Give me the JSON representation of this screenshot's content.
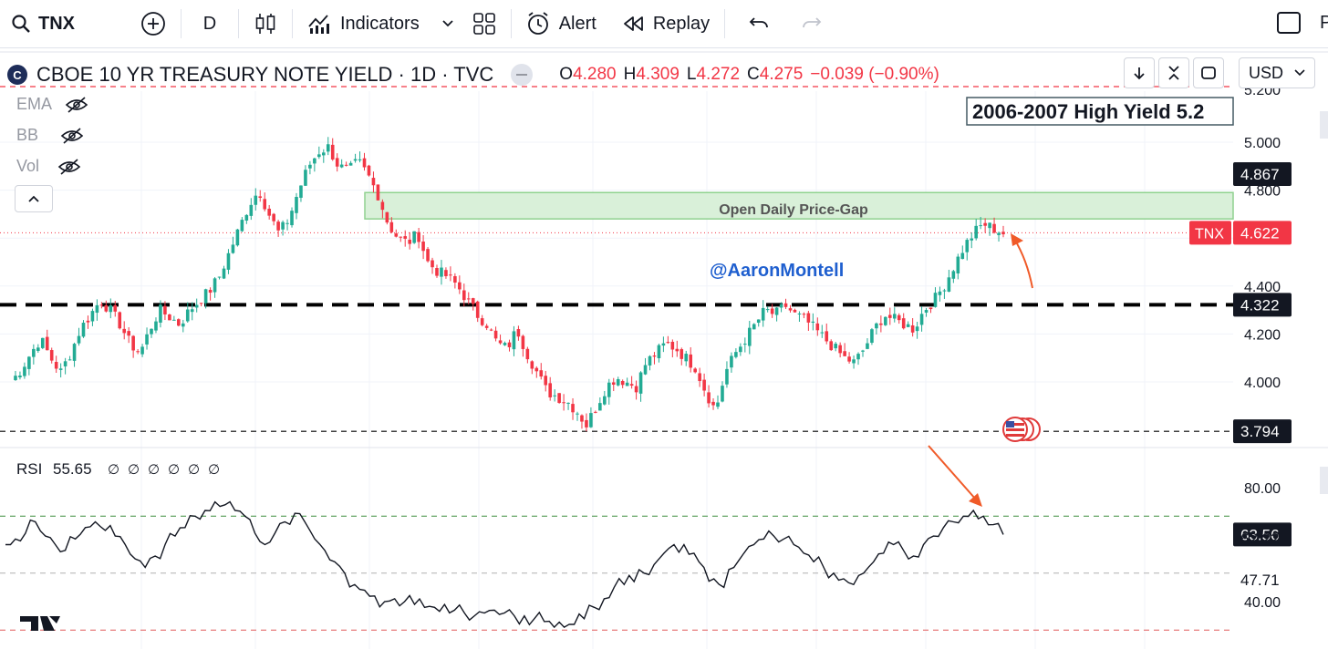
{
  "toolbar": {
    "symbol": "TNX",
    "interval": "D",
    "indicators_label": "Indicators",
    "alert_label": "Alert",
    "replay_label": "Replay",
    "right_cut_text": "P"
  },
  "title": {
    "logo_letter": "C",
    "name": "CBOE 10 YR TREASURY NOTE YIELD · 1D · TVC",
    "ohlc": {
      "o_label": "O",
      "o": "4.280",
      "h_label": "H",
      "h": "4.309",
      "l_label": "L",
      "l": "4.272",
      "c_label": "C",
      "c": "4.275",
      "change": "−0.039 (−0.90%)"
    }
  },
  "legend": {
    "ema": "EMA",
    "bb": "BB",
    "vol": "Vol"
  },
  "currency": "USD",
  "colors": {
    "up": "#22ab94",
    "down": "#f23645",
    "gap_fill": "#d9f0d9",
    "gap_border": "#8fd18f",
    "text": "#131722",
    "handle_blue": "#1f5fcf"
  },
  "chart_data": {
    "type": "candlestick",
    "price_ylim": [
      3.78,
      5.05
    ],
    "price_ticks": [
      "5.000",
      "4.800",
      "4.400",
      "4.200",
      "4.000"
    ],
    "price_tick_partial_top": "5.200",
    "price_badges": [
      {
        "label": "4.867",
        "value": 4.867,
        "style": "dark"
      },
      {
        "label": "4.622",
        "value": 4.622,
        "style": "red",
        "name": "TNX"
      },
      {
        "label": "4.322",
        "value": 4.322,
        "style": "dark"
      },
      {
        "label": "3.794",
        "value": 3.794,
        "style": "dark"
      }
    ],
    "horizontal_lines": [
      {
        "value": 4.322,
        "style": "heavy-dash",
        "color": "#000000"
      },
      {
        "value": 3.794,
        "style": "dash",
        "color": "#000000"
      },
      {
        "value": 4.622,
        "style": "dotted",
        "color": "#f23645"
      },
      {
        "value": 5.2,
        "style": "dash",
        "color": "#f23645"
      }
    ],
    "annotations": [
      {
        "text": "2006-2007 High Yield  5.2",
        "kind": "box"
      },
      {
        "text": "Open  Daily Price-Gap",
        "kind": "zone",
        "y_low": 4.68,
        "y_high": 4.79
      },
      {
        "text": "@AaronMontell",
        "kind": "handle"
      }
    ],
    "close_path": [
      4.0,
      4.05,
      4.12,
      4.18,
      4.1,
      4.04,
      4.12,
      4.22,
      4.28,
      4.34,
      4.3,
      4.24,
      4.16,
      4.12,
      4.22,
      4.3,
      4.27,
      4.24,
      4.3,
      4.34,
      4.38,
      4.44,
      4.54,
      4.64,
      4.74,
      4.8,
      4.7,
      4.62,
      4.68,
      4.8,
      4.9,
      4.96,
      4.98,
      4.9,
      4.88,
      4.92,
      4.86,
      4.78,
      4.66,
      4.6,
      4.58,
      4.62,
      4.5,
      4.46,
      4.44,
      4.4,
      4.34,
      4.28,
      4.24,
      4.16,
      4.14,
      4.22,
      4.12,
      4.04,
      3.96,
      3.94,
      3.92,
      3.88,
      3.82,
      3.9,
      3.98,
      4.02,
      4.0,
      3.98,
      4.08,
      4.12,
      4.16,
      4.14,
      4.1,
      4.06,
      3.96,
      3.88,
      4.04,
      4.12,
      4.18,
      4.24,
      4.3,
      4.28,
      4.32,
      4.28,
      4.26,
      4.22,
      4.18,
      4.14,
      4.1,
      4.08,
      4.14,
      4.22,
      4.28,
      4.26,
      4.24,
      4.22,
      4.3,
      4.34,
      4.4,
      4.48,
      4.56,
      4.62,
      4.66,
      4.64,
      4.62
    ],
    "rsi": {
      "label": "RSI",
      "value": "55.65",
      "placeholders": [
        "∅",
        "∅",
        "∅",
        "∅",
        "∅",
        "∅"
      ],
      "ylim": [
        30,
        85
      ],
      "ticks": [
        "80.00",
        "40.00"
      ],
      "badges": [
        {
          "label": "63.56",
          "value": 63.56,
          "style": "dark"
        },
        {
          "label": "62.22",
          "value": 62.22,
          "style": "plain"
        },
        {
          "label": "47.71",
          "value": 47.71,
          "style": "plain"
        }
      ],
      "guide_lines": [
        70,
        50,
        30
      ],
      "values": [
        60,
        62,
        64,
        68,
        63,
        60,
        58,
        62,
        66,
        68,
        65,
        63,
        60,
        55,
        52,
        56,
        60,
        63,
        66,
        70,
        72,
        75,
        74,
        72,
        70,
        64,
        60,
        64,
        68,
        71,
        68,
        62,
        58,
        54,
        50,
        46,
        44,
        42,
        40,
        41,
        40,
        39,
        38,
        38,
        39,
        37,
        36,
        35,
        36,
        37,
        36,
        35,
        35,
        34,
        33,
        31,
        31,
        32,
        34,
        38,
        41,
        45,
        46,
        47,
        50,
        53,
        57,
        60,
        60,
        57,
        52,
        48,
        45,
        52,
        57,
        60,
        62,
        63,
        62,
        60,
        57,
        54,
        52,
        50,
        48,
        46,
        50,
        54,
        57,
        60,
        58,
        56,
        60,
        63,
        66,
        68,
        70,
        72,
        70,
        67,
        63.56
      ]
    }
  }
}
